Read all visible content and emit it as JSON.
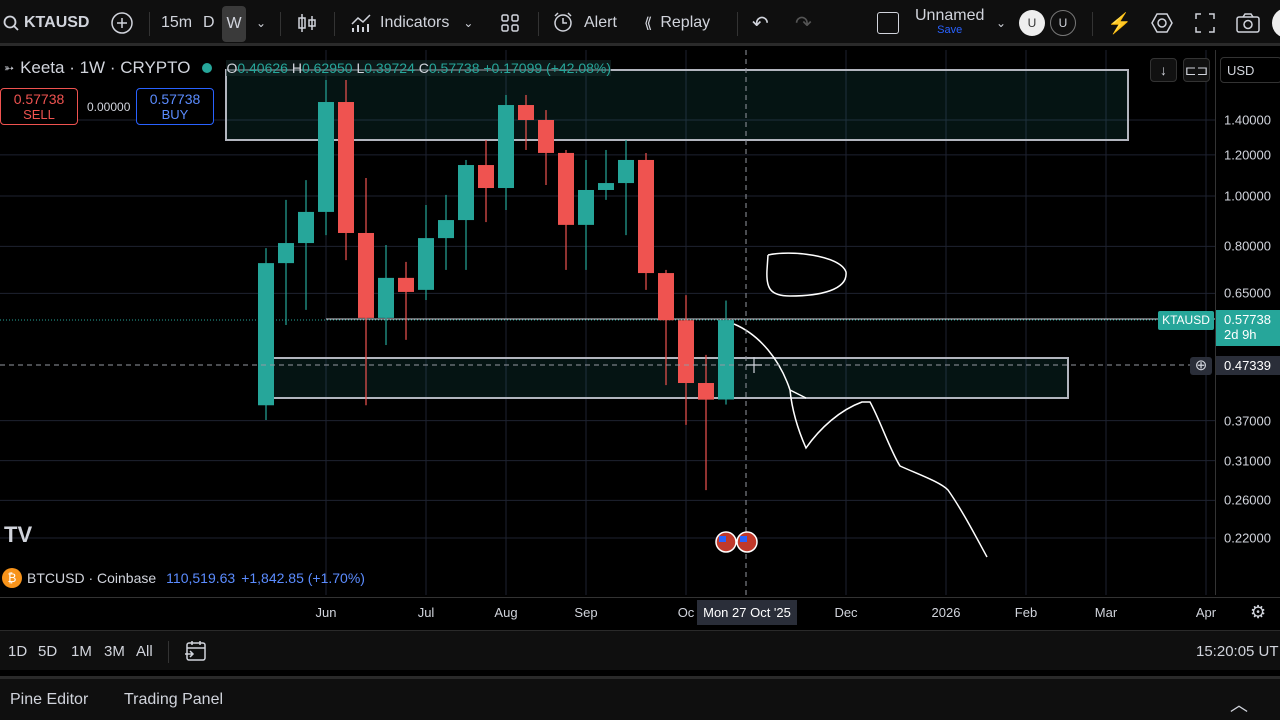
{
  "toolbar": {
    "symbol": "KTAUSD",
    "intervals": [
      "15m",
      "D",
      "W"
    ],
    "active_interval": "W",
    "indicators_label": "Indicators",
    "alert_label": "Alert",
    "replay_label": "Replay",
    "layout_name": "Unnamed",
    "save_label": "Save",
    "avatar_initial": "U"
  },
  "legend": {
    "title": "Keeta · 1W · CRYPTO",
    "open_label": "O",
    "open": "0.40626",
    "high_label": "H",
    "high": "0.62950",
    "low_label": "L",
    "low": "0.39724",
    "close_label": "C",
    "close": "0.57738",
    "change": "+0.17099 (+42.08%)",
    "sell_price": "0.57738",
    "sell_label": "SELL",
    "spread": "0.00000",
    "buy_price": "0.57738",
    "buy_label": "BUY"
  },
  "price_axis": {
    "currency": "USD",
    "labels": [
      "1.40000",
      "1.20000",
      "1.00000",
      "0.80000",
      "0.65000",
      "0.37000",
      "0.31000",
      "0.26000",
      "0.22000"
    ],
    "last_price_symbol": "KTAUSD",
    "last_price": "0.57738",
    "countdown": "2d 9h",
    "crosshair_price": "0.47339"
  },
  "time_axis": {
    "labels": [
      "Jun",
      "Jul",
      "Aug",
      "Sep",
      "Oc",
      "Dec",
      "2026",
      "Feb",
      "Mar",
      "Apr"
    ],
    "crosshair_date": "Mon 27 Oct '25"
  },
  "compare": {
    "symbol": "BTCUSD · Coinbase",
    "price": "110,519.63",
    "change": "+1,842.85 (+1.70%)"
  },
  "range_bar": {
    "ranges": [
      "1D",
      "5D",
      "1M",
      "3M",
      "All"
    ],
    "clock": "15:20:05 UT"
  },
  "bottom_panel": {
    "tabs": [
      "Pine Editor",
      "Trading Panel"
    ]
  },
  "colors": {
    "up": "#26a69a",
    "down": "#ef5350",
    "accent": "#2962ff",
    "background": "#000000"
  },
  "chart_data": {
    "type": "candlestick",
    "scale": "log",
    "interval": "1W",
    "ylim": [
      0.2,
      1.75
    ],
    "candles": [
      [
        0.396,
        0.794,
        0.371,
        0.743
      ],
      [
        0.743,
        0.983,
        0.565,
        0.812
      ],
      [
        0.812,
        1.073,
        0.604,
        0.932
      ],
      [
        0.932,
        1.671,
        0.841,
        1.516
      ],
      [
        1.516,
        1.671,
        0.753,
        0.849
      ],
      [
        0.849,
        1.083,
        0.396,
        0.583
      ],
      [
        0.583,
        0.805,
        0.517,
        0.696
      ],
      [
        0.696,
        0.747,
        0.529,
        0.654
      ],
      [
        0.66,
        0.961,
        0.631,
        0.83
      ],
      [
        0.83,
        1.005,
        0.721,
        0.899
      ],
      [
        0.899,
        1.173,
        0.721,
        1.147
      ],
      [
        1.147,
        1.281,
        0.891,
        1.036
      ],
      [
        1.036,
        1.564,
        0.94,
        1.496
      ],
      [
        1.496,
        1.564,
        1.226,
        1.4
      ],
      [
        1.4,
        1.463,
        1.05,
        1.21
      ],
      [
        1.21,
        1.226,
        0.721,
        0.88
      ],
      [
        0.88,
        1.173,
        0.721,
        1.027
      ],
      [
        1.027,
        1.226,
        0.983,
        1.059
      ],
      [
        1.059,
        1.281,
        0.841,
        1.173
      ],
      [
        1.173,
        1.21,
        0.66,
        0.711
      ],
      [
        0.711,
        0.721,
        0.433,
        0.577
      ],
      [
        0.577,
        0.645,
        0.363,
        0.437
      ],
      [
        0.437,
        0.495,
        0.272,
        0.406
      ],
      [
        0.40626,
        0.6295,
        0.39724,
        0.57738
      ]
    ]
  }
}
